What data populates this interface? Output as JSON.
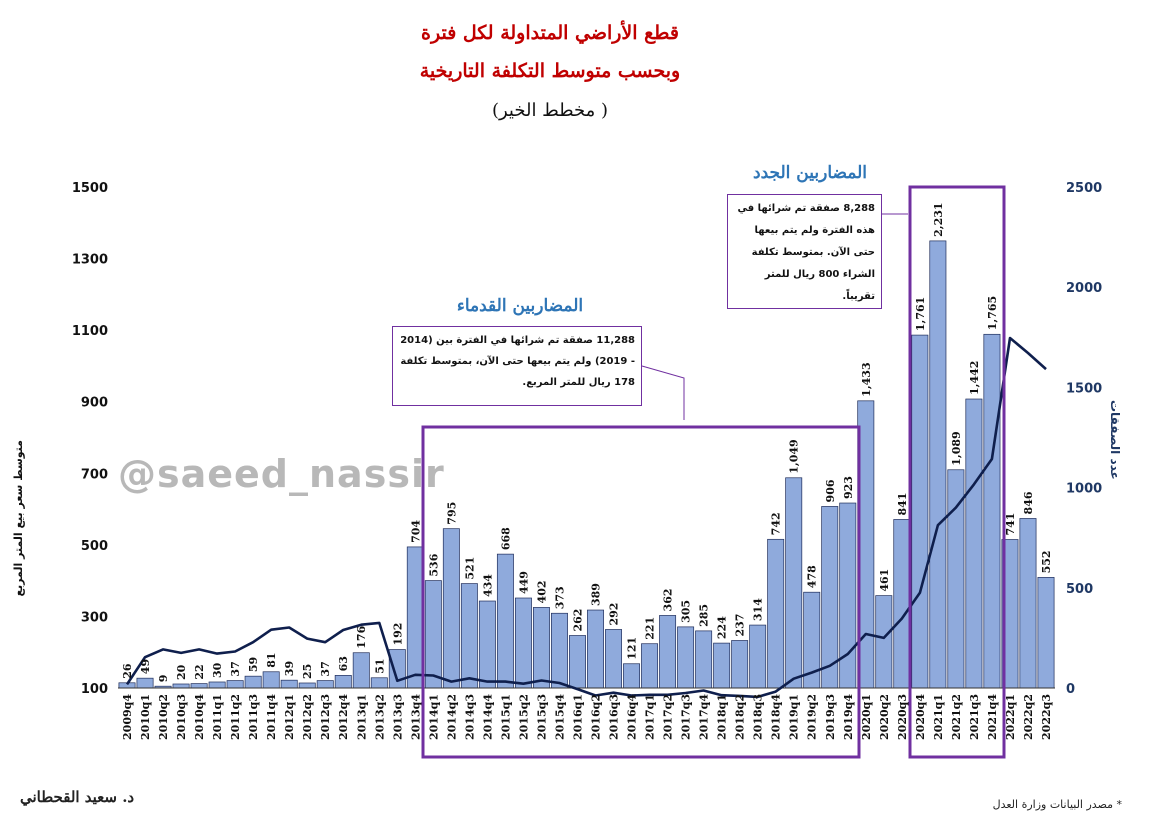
{
  "title_line1": "قطع الأراضي المتداولة لكل فترة",
  "title_line2": "وبحسب متوسط التكلفة التاريخية",
  "title_line3": "(مخطط الخير )",
  "author": "د. سعيد القحطاني",
  "source": "* مصدر البيانات وزارة العدل",
  "watermark": "@saeed_nassir",
  "groups": {
    "old_label": "المضاربين القدماء",
    "new_label": "المضاربين الجدد",
    "old_note": "11,288 صفقة تم شرائها في الفترة بين (2014 - 2019) ولم يتم بيعها حتى الآن، بمتوسط تكلفة 178 ريال للمتر المربع.",
    "new_note": "8,288 صفقة تم شرائها في هذه الفترة ولم يتم بيعها حتى الآن. بمتوسط تكلفة الشراء 800 ريال للمتر تقريباً."
  },
  "colors": {
    "bars": "#8faadc",
    "bar_stroke": "#1f2d5a",
    "line": "#0f1f4d",
    "box": "#7030a0",
    "title": "#c00000",
    "group_label": "#2e75b6"
  },
  "chart_data": {
    "type": "bar",
    "title": "قطع الأراضي المتداولة لكل فترة",
    "ylabel": "متوسط سعر بيع المتر المربع",
    "y2label": "عدد الصفقات",
    "ylim": [
      100,
      1500
    ],
    "y_ticks": [
      100,
      300,
      500,
      700,
      900,
      1100,
      1300,
      1500
    ],
    "y2lim": [
      0,
      2500
    ],
    "y2_ticks": [
      0,
      500,
      1000,
      1500,
      2000,
      2500
    ],
    "legend": "none",
    "grid": false,
    "categories": [
      "2009q4",
      "2010q1",
      "2010q2",
      "2010q3",
      "2010q4",
      "2011q1",
      "2011q2",
      "2011q3",
      "2011q4",
      "2012q1",
      "2012q2",
      "2012q3",
      "2012q4",
      "2013q1",
      "2013q2",
      "2013q3",
      "2013q4",
      "2014q1",
      "2014q2",
      "2014q3",
      "2014q4",
      "2015q1",
      "2015q2",
      "2015q3",
      "2015q4",
      "2016q1",
      "2016q2",
      "2016q3",
      "2016q4",
      "2017q1",
      "2017q2",
      "2017q3",
      "2017q4",
      "2018q1",
      "2018q2",
      "2018q3",
      "2018q4",
      "2019q1",
      "2019q2",
      "2019q3",
      "2019q4",
      "2020q1",
      "2020q2",
      "2020q3",
      "2020q4",
      "2021q1",
      "2021q2",
      "2021q3",
      "2021q4",
      "2022q1",
      "2022q2",
      "2022q3"
    ],
    "series": [
      {
        "type": "bar",
        "axis": "right",
        "values": [
          26,
          49,
          9,
          20,
          22,
          30,
          37,
          59,
          81,
          39,
          25,
          37,
          63,
          176,
          51,
          192,
          704,
          536,
          795,
          521,
          434,
          668,
          449,
          402,
          373,
          262,
          389,
          292,
          121,
          221,
          362,
          305,
          285,
          224,
          237,
          314,
          742,
          1049,
          478,
          906,
          923,
          1433,
          461,
          841,
          1761,
          2231,
          1089,
          1442,
          1765,
          741,
          846,
          552
        ]
      },
      {
        "type": "line",
        "axis": "left",
        "values": [
          110,
          186,
          208,
          198,
          208,
          196,
          202,
          228,
          263,
          269,
          238,
          228,
          262,
          277,
          282,
          120,
          137,
          135,
          118,
          127,
          118,
          118,
          112,
          121,
          114,
          97,
          79,
          87,
          79,
          81,
          81,
          86,
          93,
          80,
          78,
          75,
          90,
          126,
          143,
          162,
          195,
          251,
          240,
          294,
          366,
          555,
          604,
          669,
          740,
          1078,
          1036,
          991
        ]
      }
    ]
  }
}
